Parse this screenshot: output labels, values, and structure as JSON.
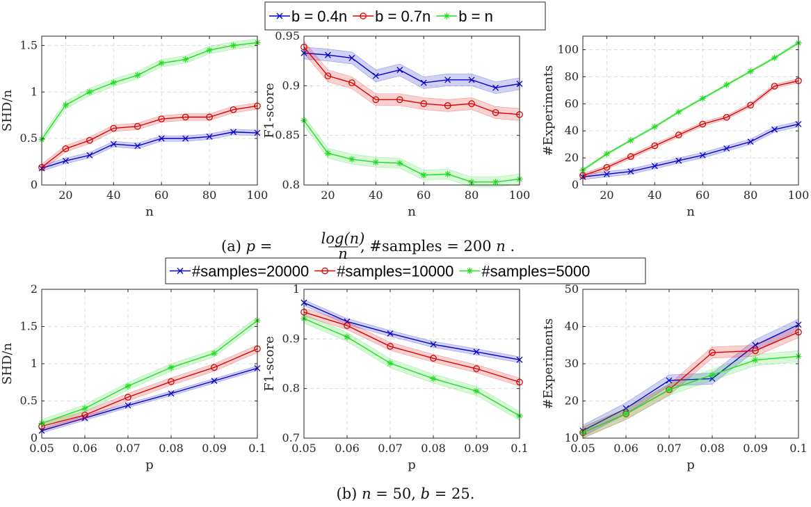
{
  "captions": {
    "a_label": "(a)",
    "a_p": "p",
    "a_eq": "=",
    "a_frac_num": "log(n)",
    "a_frac_den": "n",
    "a_rest": ", #samples = 200",
    "a_rest_n": "n",
    "a_end": ".",
    "b_label": "(b)",
    "b_n": "n",
    "b_eq1": " = 50, ",
    "b_b": "b",
    "b_eq2": " = 25."
  },
  "legends": [
    {
      "entries": [
        {
          "label": "b = 0.4n",
          "color": "#0000cc",
          "marker": "x"
        },
        {
          "label": "b = 0.7n",
          "color": "#dd0000",
          "marker": "o"
        },
        {
          "label": "b = n",
          "color": "#22dd22",
          "marker": "*"
        }
      ]
    },
    {
      "entries": [
        {
          "label": "#samples=20000",
          "color": "#0000cc",
          "marker": "x"
        },
        {
          "label": "#samples=10000",
          "color": "#dd0000",
          "marker": "o"
        },
        {
          "label": "#samples=5000",
          "color": "#22dd22",
          "marker": "*"
        }
      ]
    }
  ],
  "chart_data": [
    {
      "type": "line",
      "row": 0,
      "col": 0,
      "xlabel": "n",
      "ylabel": "SHD/n",
      "xlim": [
        10,
        100
      ],
      "ylim": [
        0,
        1.6
      ],
      "xticks": [
        20,
        40,
        60,
        80,
        100
      ],
      "xtick_labels": [
        "20",
        "40",
        "60",
        "80",
        "100"
      ],
      "yticks": [
        0,
        0.5,
        1,
        1.5
      ],
      "ytick_labels": [
        "0",
        "0.5",
        "1",
        "1.5"
      ],
      "grid": true,
      "x": [
        10,
        20,
        30,
        40,
        50,
        60,
        70,
        80,
        90,
        100
      ],
      "series": [
        {
          "name": "b = 0.4n",
          "color": "#0000cc",
          "marker": "x",
          "band": 0.03,
          "values": [
            0.18,
            0.26,
            0.32,
            0.44,
            0.42,
            0.5,
            0.5,
            0.52,
            0.57,
            0.56
          ]
        },
        {
          "name": "b = 0.7n",
          "color": "#dd0000",
          "marker": "o",
          "band": 0.035,
          "values": [
            0.19,
            0.39,
            0.48,
            0.61,
            0.63,
            0.71,
            0.73,
            0.73,
            0.81,
            0.85
          ]
        },
        {
          "name": "b = n",
          "color": "#22dd22",
          "marker": "*",
          "band": 0.04,
          "values": [
            0.49,
            0.86,
            1.0,
            1.1,
            1.18,
            1.31,
            1.35,
            1.45,
            1.5,
            1.53
          ]
        }
      ]
    },
    {
      "type": "line",
      "row": 0,
      "col": 1,
      "xlabel": "n",
      "ylabel": "F1-score",
      "xlim": [
        10,
        100
      ],
      "ylim": [
        0.8,
        0.95
      ],
      "xticks": [
        20,
        40,
        60,
        80,
        100
      ],
      "xtick_labels": [
        "20",
        "40",
        "60",
        "80",
        "100"
      ],
      "yticks": [
        0.8,
        0.85,
        0.9,
        0.95
      ],
      "ytick_labels": [
        "0.8",
        "0.85",
        "0.9",
        "0.95"
      ],
      "grid": true,
      "x": [
        10,
        20,
        30,
        40,
        50,
        60,
        70,
        80,
        90,
        100
      ],
      "series": [
        {
          "name": "b = 0.4n",
          "color": "#0000cc",
          "marker": "x",
          "band": 0.006,
          "values": [
            0.933,
            0.931,
            0.928,
            0.91,
            0.916,
            0.903,
            0.906,
            0.906,
            0.898,
            0.902
          ]
        },
        {
          "name": "b = 0.7n",
          "color": "#dd0000",
          "marker": "o",
          "band": 0.006,
          "values": [
            0.939,
            0.91,
            0.903,
            0.886,
            0.886,
            0.882,
            0.88,
            0.882,
            0.873,
            0.871
          ]
        },
        {
          "name": "b = n",
          "color": "#22dd22",
          "marker": "*",
          "band": 0.005,
          "values": [
            0.865,
            0.832,
            0.826,
            0.823,
            0.822,
            0.81,
            0.811,
            0.803,
            0.803,
            0.806
          ]
        }
      ]
    },
    {
      "type": "line",
      "row": 0,
      "col": 2,
      "xlabel": "n",
      "ylabel": "#Experiments",
      "xlim": [
        10,
        100
      ],
      "ylim": [
        0,
        110
      ],
      "xticks": [
        20,
        40,
        60,
        80,
        100
      ],
      "xtick_labels": [
        "20",
        "40",
        "60",
        "80",
        "100"
      ],
      "yticks": [
        0,
        20,
        40,
        60,
        80,
        100
      ],
      "ytick_labels": [
        "0",
        "20",
        "40",
        "60",
        "80",
        "100"
      ],
      "grid": true,
      "x": [
        10,
        20,
        30,
        40,
        50,
        60,
        70,
        80,
        90,
        100
      ],
      "series": [
        {
          "name": "b = 0.4n",
          "color": "#0000cc",
          "marker": "x",
          "band": 2,
          "values": [
            6,
            8,
            10,
            14,
            18,
            22,
            27,
            32,
            41,
            45
          ]
        },
        {
          "name": "b = 0.7n",
          "color": "#dd0000",
          "marker": "o",
          "band": 1.5,
          "values": [
            7,
            13,
            21,
            29,
            37,
            45,
            50,
            59,
            73,
            77
          ]
        },
        {
          "name": "b = n",
          "color": "#22dd22",
          "marker": "*",
          "band": 0.8,
          "values": [
            11,
            23,
            33,
            43,
            54,
            64,
            74,
            84,
            94,
            105
          ]
        }
      ]
    },
    {
      "type": "line",
      "row": 1,
      "col": 0,
      "xlabel": "p",
      "ylabel": "SHD/n",
      "xlim": [
        0.05,
        0.1
      ],
      "ylim": [
        0,
        2
      ],
      "xticks": [
        0.05,
        0.06,
        0.07,
        0.08,
        0.09,
        0.1
      ],
      "xtick_labels": [
        "0.05",
        "0.06",
        "0.07",
        "0.08",
        "0.09",
        "0.1"
      ],
      "yticks": [
        0,
        0.5,
        1,
        1.5,
        2
      ],
      "ytick_labels": [
        "0",
        "0.5",
        "1",
        "1.5",
        "2"
      ],
      "grid": true,
      "x": [
        0.05,
        0.06,
        0.07,
        0.08,
        0.09,
        0.1
      ],
      "series": [
        {
          "name": "#samples=20000",
          "color": "#0000cc",
          "marker": "x",
          "band": 0.03,
          "values": [
            0.1,
            0.27,
            0.44,
            0.6,
            0.77,
            0.94
          ]
        },
        {
          "name": "#samples=10000",
          "color": "#dd0000",
          "marker": "o",
          "band": 0.05,
          "values": [
            0.16,
            0.31,
            0.55,
            0.76,
            0.95,
            1.2
          ]
        },
        {
          "name": "#samples=5000",
          "color": "#22dd22",
          "marker": "*",
          "band": 0.05,
          "values": [
            0.2,
            0.4,
            0.7,
            0.95,
            1.14,
            1.58
          ]
        }
      ]
    },
    {
      "type": "line",
      "row": 1,
      "col": 1,
      "xlabel": "p",
      "ylabel": "F1-score",
      "xlim": [
        0.05,
        0.1
      ],
      "ylim": [
        0.7,
        1
      ],
      "xticks": [
        0.05,
        0.06,
        0.07,
        0.08,
        0.09,
        0.1
      ],
      "xtick_labels": [
        "0.05",
        "0.06",
        "0.07",
        "0.08",
        "0.09",
        "0.1"
      ],
      "yticks": [
        0.7,
        0.8,
        0.9,
        1
      ],
      "ytick_labels": [
        "0.7",
        "0.8",
        "0.9",
        "1"
      ],
      "grid": true,
      "x": [
        0.05,
        0.06,
        0.07,
        0.08,
        0.09,
        0.1
      ],
      "series": [
        {
          "name": "#samples=20000",
          "color": "#0000cc",
          "marker": "x",
          "band": 0.006,
          "values": [
            0.973,
            0.935,
            0.911,
            0.889,
            0.874,
            0.858
          ]
        },
        {
          "name": "#samples=10000",
          "color": "#dd0000",
          "marker": "o",
          "band": 0.008,
          "values": [
            0.954,
            0.927,
            0.885,
            0.861,
            0.84,
            0.813
          ]
        },
        {
          "name": "#samples=5000",
          "color": "#22dd22",
          "marker": "*",
          "band": 0.009,
          "values": [
            0.941,
            0.904,
            0.851,
            0.82,
            0.795,
            0.745
          ]
        }
      ]
    },
    {
      "type": "line",
      "row": 1,
      "col": 2,
      "xlabel": "p",
      "ylabel": "#Experiments",
      "xlim": [
        0.05,
        0.1
      ],
      "ylim": [
        10,
        50
      ],
      "xticks": [
        0.05,
        0.06,
        0.07,
        0.08,
        0.09,
        0.1
      ],
      "xtick_labels": [
        "0.05",
        "0.06",
        "0.07",
        "0.08",
        "0.09",
        "0.1"
      ],
      "yticks": [
        10,
        20,
        30,
        40,
        50
      ],
      "ytick_labels": [
        "10",
        "20",
        "30",
        "40",
        "50"
      ],
      "grid": true,
      "x": [
        0.05,
        0.06,
        0.07,
        0.08,
        0.09,
        0.1
      ],
      "series": [
        {
          "name": "#samples=20000",
          "color": "#0000cc",
          "marker": "x",
          "band": 1.5,
          "values": [
            12,
            18,
            25.5,
            26,
            35,
            40.5
          ]
        },
        {
          "name": "#samples=10000",
          "color": "#dd0000",
          "marker": "o",
          "band": 1.5,
          "values": [
            11.5,
            16.5,
            23,
            33,
            33.5,
            38.5
          ]
        },
        {
          "name": "#samples=5000",
          "color": "#22dd22",
          "marker": "*",
          "band": 1.5,
          "values": [
            11.5,
            16.5,
            23,
            27,
            31,
            32
          ]
        }
      ]
    }
  ]
}
